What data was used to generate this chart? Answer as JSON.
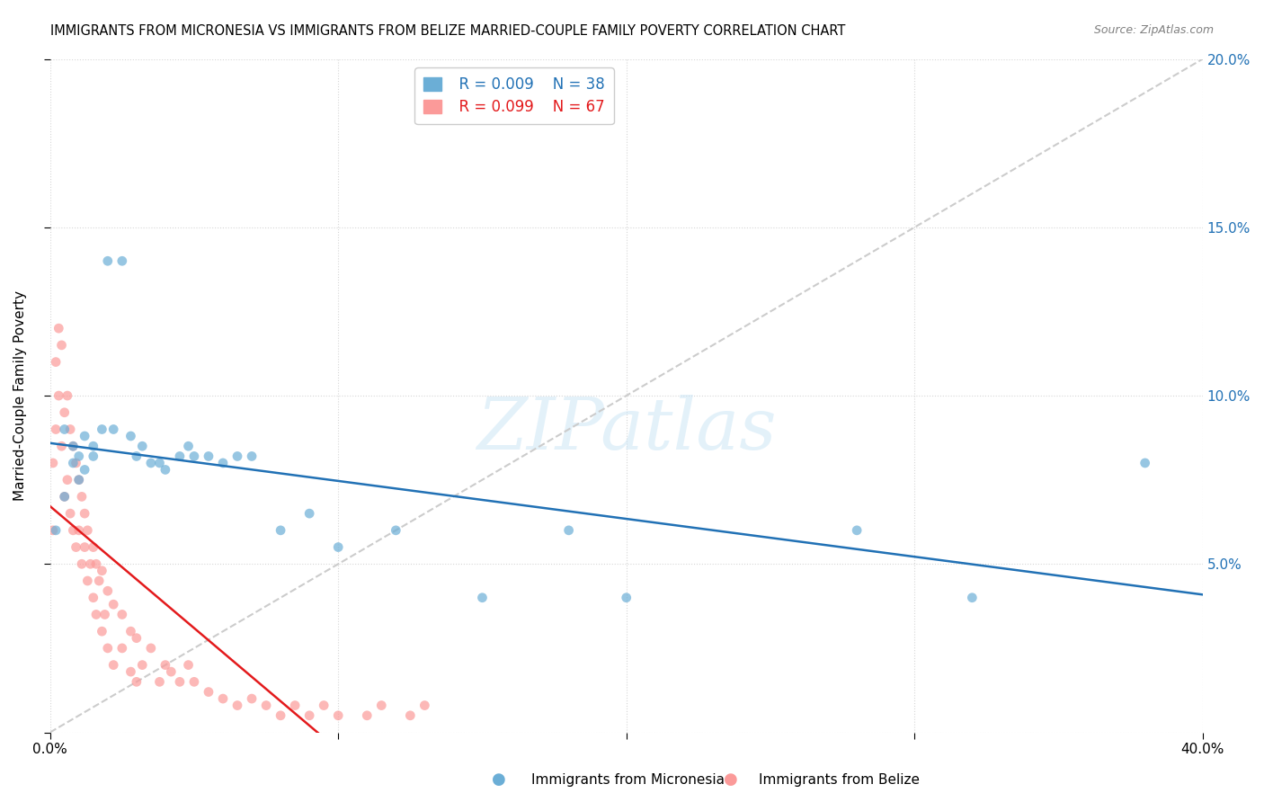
{
  "title": "IMMIGRANTS FROM MICRONESIA VS IMMIGRANTS FROM BELIZE MARRIED-COUPLE FAMILY POVERTY CORRELATION CHART",
  "source": "Source: ZipAtlas.com",
  "ylabel": "Married-Couple Family Poverty",
  "xmin": 0.0,
  "xmax": 0.4,
  "ymin": 0.0,
  "ymax": 0.2,
  "xtick_positions": [
    0.0,
    0.1,
    0.2,
    0.3,
    0.4
  ],
  "xtick_labels": [
    "0.0%",
    "",
    "",
    "",
    "40.0%"
  ],
  "ytick_positions": [
    0.0,
    0.05,
    0.1,
    0.15,
    0.2
  ],
  "ytick_labels_right": [
    "",
    "5.0%",
    "10.0%",
    "15.0%",
    "20.0%"
  ],
  "legend_r1": "R = 0.009",
  "legend_n1": "N = 38",
  "legend_r2": "R = 0.099",
  "legend_n2": "N = 67",
  "color_micronesia": "#6baed6",
  "color_belize": "#fb9a99",
  "trendline_color_micronesia": "#2171b5",
  "trendline_color_belize": "#e31a1c",
  "trendline_diagonal_color": "#cccccc",
  "watermark": "ZIPatlas",
  "micronesia_x": [
    0.002,
    0.005,
    0.005,
    0.008,
    0.008,
    0.01,
    0.01,
    0.012,
    0.012,
    0.015,
    0.015,
    0.018,
    0.02,
    0.022,
    0.025,
    0.028,
    0.03,
    0.032,
    0.035,
    0.038,
    0.04,
    0.045,
    0.048,
    0.05,
    0.055,
    0.06,
    0.065,
    0.07,
    0.08,
    0.09,
    0.1,
    0.12,
    0.15,
    0.18,
    0.2,
    0.28,
    0.32,
    0.38
  ],
  "micronesia_y": [
    0.06,
    0.07,
    0.09,
    0.08,
    0.085,
    0.075,
    0.082,
    0.078,
    0.088,
    0.082,
    0.085,
    0.09,
    0.14,
    0.09,
    0.14,
    0.088,
    0.082,
    0.085,
    0.08,
    0.08,
    0.078,
    0.082,
    0.085,
    0.082,
    0.082,
    0.08,
    0.082,
    0.082,
    0.06,
    0.065,
    0.055,
    0.06,
    0.04,
    0.06,
    0.04,
    0.06,
    0.04,
    0.08
  ],
  "belize_x": [
    0.001,
    0.001,
    0.002,
    0.002,
    0.003,
    0.003,
    0.004,
    0.004,
    0.005,
    0.005,
    0.006,
    0.006,
    0.007,
    0.007,
    0.008,
    0.008,
    0.009,
    0.009,
    0.01,
    0.01,
    0.011,
    0.011,
    0.012,
    0.012,
    0.013,
    0.013,
    0.014,
    0.015,
    0.015,
    0.016,
    0.016,
    0.017,
    0.018,
    0.018,
    0.019,
    0.02,
    0.02,
    0.022,
    0.022,
    0.025,
    0.025,
    0.028,
    0.028,
    0.03,
    0.03,
    0.032,
    0.035,
    0.038,
    0.04,
    0.042,
    0.045,
    0.048,
    0.05,
    0.055,
    0.06,
    0.065,
    0.07,
    0.075,
    0.08,
    0.085,
    0.09,
    0.095,
    0.1,
    0.11,
    0.115,
    0.125,
    0.13
  ],
  "belize_y": [
    0.06,
    0.08,
    0.09,
    0.11,
    0.1,
    0.12,
    0.085,
    0.115,
    0.07,
    0.095,
    0.075,
    0.1,
    0.065,
    0.09,
    0.06,
    0.085,
    0.055,
    0.08,
    0.06,
    0.075,
    0.05,
    0.07,
    0.055,
    0.065,
    0.045,
    0.06,
    0.05,
    0.04,
    0.055,
    0.035,
    0.05,
    0.045,
    0.03,
    0.048,
    0.035,
    0.025,
    0.042,
    0.02,
    0.038,
    0.025,
    0.035,
    0.018,
    0.03,
    0.015,
    0.028,
    0.02,
    0.025,
    0.015,
    0.02,
    0.018,
    0.015,
    0.02,
    0.015,
    0.012,
    0.01,
    0.008,
    0.01,
    0.008,
    0.005,
    0.008,
    0.005,
    0.008,
    0.005,
    0.005,
    0.008,
    0.005,
    0.008
  ]
}
